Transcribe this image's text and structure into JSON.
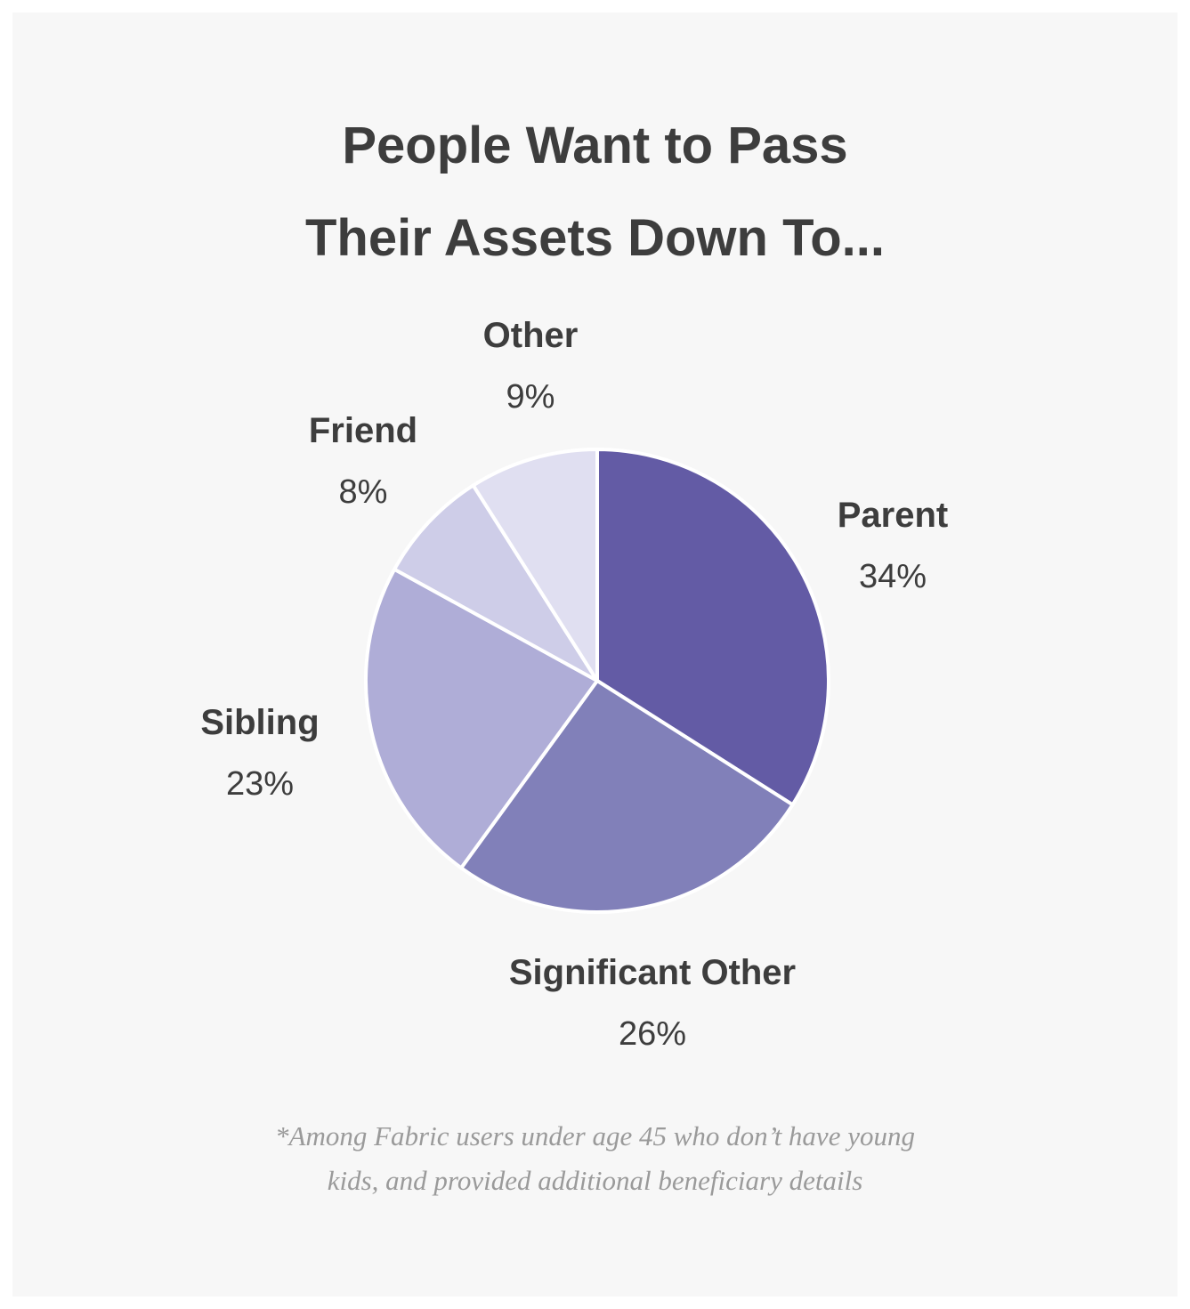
{
  "chart_data": {
    "type": "pie",
    "title": "People Want to Pass Their Assets Down To...",
    "title_lines": [
      "People Want to Pass",
      "Their Assets Down To..."
    ],
    "categories": [
      "Parent",
      "Significant Other",
      "Sibling",
      "Friend",
      "Other"
    ],
    "values": [
      34,
      26,
      23,
      8,
      9
    ],
    "value_labels": [
      "34%",
      "26%",
      "23%",
      "8%",
      "9%"
    ],
    "unit": "%",
    "colors": [
      "#635ba5",
      "#8180b9",
      "#afadd7",
      "#cecde8",
      "#e0dff1"
    ],
    "start_angle": "12 o'clock",
    "direction": "clockwise",
    "legend": "none"
  },
  "footnote": {
    "lines": [
      "*Among Fabric users under age 45 who don’t have young",
      "kids, and provided additional beneficiary details"
    ]
  },
  "colors": {
    "background": "#f7f7f7",
    "text": "#3d3d3d",
    "footnote": "#9a9a9a"
  }
}
